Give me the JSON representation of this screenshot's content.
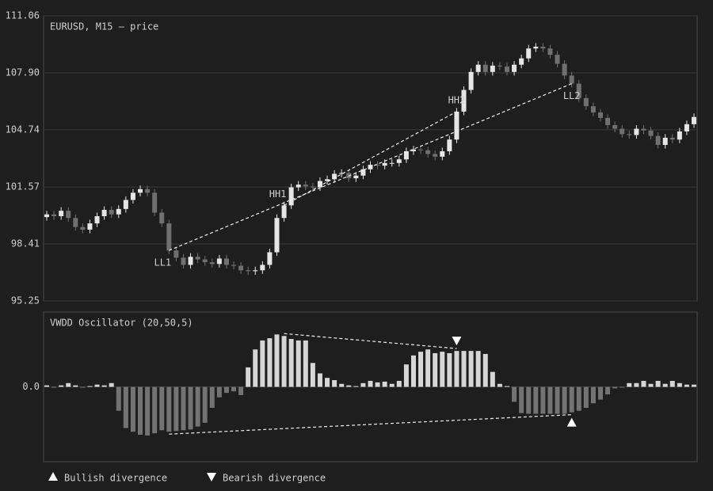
{
  "chart_data": [
    {
      "type": "candlestick",
      "title": "EURUSD, M15 — price",
      "open": [
        99.9,
        100.05,
        99.95,
        100.25,
        99.85,
        99.35,
        99.2,
        99.55,
        99.95,
        100.3,
        100.05,
        100.35,
        100.85,
        101.25,
        101.45,
        101.25,
        100.15,
        99.55,
        98.05,
        97.65,
        97.25,
        97.7,
        97.55,
        97.4,
        97.3,
        97.6,
        97.25,
        97.2,
        96.95,
        96.9,
        96.95,
        97.25,
        97.95,
        99.85,
        100.55,
        101.55,
        101.7,
        101.6,
        101.55,
        101.9,
        102.0,
        102.3,
        102.35,
        102.05,
        102.2,
        102.55,
        102.8,
        102.75,
        102.9,
        102.9,
        103.1,
        103.55,
        103.65,
        103.6,
        103.4,
        103.25,
        103.55,
        104.2,
        105.75,
        106.95,
        107.95,
        108.35,
        107.95,
        108.3,
        108.25,
        107.95,
        108.35,
        108.7,
        109.25,
        109.35,
        109.25,
        108.9,
        108.4,
        107.75,
        107.3,
        106.5,
        106.05,
        105.7,
        105.4,
        105.0,
        104.8,
        104.5,
        104.45,
        104.8,
        104.7,
        104.4,
        103.9,
        104.3,
        104.2,
        104.65,
        105.05
      ],
      "high": [
        100.25,
        100.25,
        100.45,
        100.45,
        100.05,
        99.55,
        99.75,
        100.15,
        100.5,
        100.5,
        100.55,
        101.05,
        101.45,
        101.65,
        101.65,
        101.45,
        100.35,
        99.75,
        98.25,
        97.85,
        97.9,
        97.9,
        97.75,
        97.6,
        97.8,
        97.8,
        97.45,
        97.4,
        97.15,
        97.15,
        97.45,
        98.15,
        100.05,
        100.75,
        101.75,
        101.9,
        101.9,
        101.8,
        102.1,
        102.2,
        102.5,
        102.55,
        102.55,
        102.4,
        102.75,
        103.0,
        103.0,
        103.1,
        103.1,
        103.3,
        103.75,
        103.85,
        103.85,
        103.8,
        103.6,
        103.75,
        104.4,
        105.95,
        107.15,
        108.15,
        108.55,
        108.55,
        108.5,
        108.5,
        108.45,
        108.55,
        108.9,
        109.45,
        109.55,
        109.55,
        109.45,
        109.1,
        108.6,
        107.95,
        107.5,
        106.7,
        106.25,
        105.9,
        105.6,
        105.2,
        105.0,
        104.7,
        105.0,
        105.0,
        104.9,
        104.6,
        104.5,
        104.5,
        104.85,
        105.25,
        105.65
      ],
      "low": [
        99.7,
        99.75,
        99.75,
        99.65,
        99.15,
        99.0,
        99.0,
        99.35,
        99.75,
        99.85,
        99.85,
        100.15,
        100.65,
        101.05,
        101.05,
        99.95,
        99.35,
        97.85,
        97.45,
        97.05,
        97.05,
        97.35,
        97.2,
        97.1,
        97.1,
        97.05,
        97.0,
        96.75,
        96.7,
        96.7,
        96.75,
        97.05,
        97.75,
        99.65,
        100.35,
        101.35,
        101.4,
        101.35,
        101.35,
        101.7,
        101.8,
        102.1,
        101.85,
        101.85,
        102.0,
        102.35,
        102.55,
        102.55,
        102.7,
        102.7,
        102.9,
        103.35,
        103.4,
        103.2,
        103.05,
        103.05,
        103.35,
        104.0,
        105.55,
        106.75,
        107.75,
        107.75,
        107.75,
        108.05,
        107.75,
        107.75,
        108.15,
        108.5,
        109.05,
        109.05,
        108.7,
        108.2,
        107.55,
        107.1,
        106.3,
        105.85,
        105.5,
        105.2,
        104.8,
        104.6,
        104.3,
        104.25,
        104.25,
        104.5,
        104.2,
        103.7,
        103.7,
        104.0,
        104.0,
        104.45,
        104.85
      ],
      "close": [
        100.05,
        99.95,
        100.25,
        99.85,
        99.35,
        99.2,
        99.55,
        99.95,
        100.3,
        100.05,
        100.35,
        100.85,
        101.25,
        101.45,
        101.25,
        100.15,
        99.55,
        98.05,
        97.65,
        97.25,
        97.7,
        97.55,
        97.4,
        97.3,
        97.6,
        97.25,
        97.2,
        96.95,
        96.9,
        96.95,
        97.25,
        97.95,
        99.85,
        100.55,
        101.55,
        101.7,
        101.6,
        101.55,
        101.9,
        102.0,
        102.3,
        102.35,
        102.05,
        102.2,
        102.55,
        102.8,
        102.75,
        102.9,
        102.9,
        103.1,
        103.55,
        103.65,
        103.6,
        103.4,
        103.25,
        103.55,
        104.2,
        105.75,
        106.95,
        107.95,
        108.35,
        107.95,
        108.3,
        108.25,
        107.95,
        108.35,
        108.7,
        109.25,
        109.35,
        109.25,
        108.9,
        108.4,
        107.75,
        107.3,
        106.5,
        106.05,
        105.7,
        105.4,
        105.0,
        104.8,
        104.5,
        104.45,
        104.8,
        104.7,
        104.4,
        103.9,
        104.3,
        104.2,
        104.65,
        105.05,
        105.45
      ],
      "up_color": "#e6e6e6",
      "down_color": "#707070",
      "ylim": [
        95.25,
        111.06
      ],
      "yticks": [
        95.25,
        98.41,
        101.57,
        104.74,
        {
          "value": 107.9,
          "label": "107.90"
        },
        111.06
      ],
      "grid": true
    },
    {
      "type": "bar",
      "title": "VWDD Oscillator (20,50,5)",
      "values": [
        0.02,
        -0.01,
        0.02,
        0.05,
        0.02,
        -0.01,
        0.01,
        0.03,
        0.02,
        0.05,
        -0.32,
        -0.55,
        -0.6,
        -0.64,
        -0.65,
        -0.62,
        -0.58,
        -0.6,
        -0.59,
        -0.58,
        -0.57,
        -0.53,
        -0.48,
        -0.28,
        -0.14,
        -0.08,
        -0.06,
        -0.11,
        0.26,
        0.5,
        0.62,
        0.65,
        0.7,
        0.68,
        0.64,
        0.62,
        0.62,
        0.32,
        0.18,
        0.12,
        0.09,
        0.04,
        0.02,
        0.01,
        0.05,
        0.08,
        0.06,
        0.07,
        0.04,
        0.08,
        0.3,
        0.42,
        0.47,
        0.5,
        0.45,
        0.47,
        0.45,
        0.48,
        0.48,
        0.48,
        0.48,
        0.44,
        0.2,
        0.04,
        0.01,
        -0.2,
        -0.35,
        -0.36,
        -0.36,
        -0.36,
        -0.36,
        -0.36,
        -0.36,
        -0.34,
        -0.32,
        -0.28,
        -0.22,
        -0.17,
        -0.1,
        -0.02,
        -0.01,
        0.05,
        0.05,
        0.08,
        0.04,
        0.08,
        0.04,
        0.08,
        0.05,
        0.03,
        0.03
      ],
      "positive_color": "#d6d6d6",
      "negative_color": "#737373",
      "ylim": [
        -1,
        1
      ],
      "yticks": [
        {
          "value": 0,
          "label": "0.0"
        }
      ],
      "grid": true
    }
  ],
  "divergences": [
    {
      "kind": "bullish",
      "label": "Bullish divergence",
      "points": [
        {
          "label": "LL1",
          "index": 17
        },
        {
          "label": "LL2",
          "index": 73
        }
      ]
    },
    {
      "kind": "bearish",
      "label": "Bearish divergence",
      "points": [
        {
          "label": "HH1",
          "index": 33
        },
        {
          "label": "HH2",
          "index": 57
        }
      ]
    }
  ]
}
